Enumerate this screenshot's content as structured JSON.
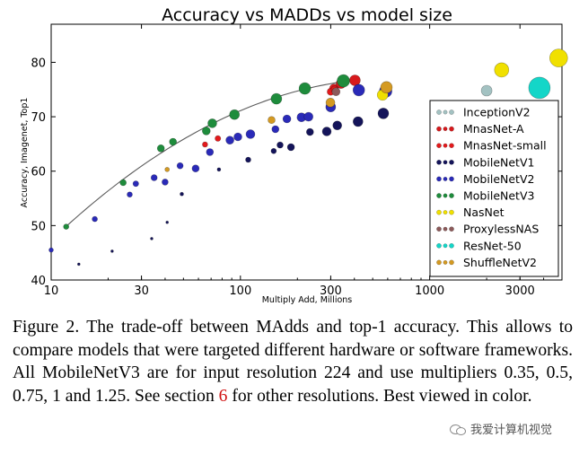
{
  "chart_data": {
    "type": "scatter",
    "title": "Accuracy vs MADDs vs model size",
    "xlabel": "Multiply Add, Millions",
    "ylabel": "Accuracy, Imagenet, Top1",
    "xscale": "log",
    "xlim": [
      10,
      5000
    ],
    "ylim": [
      40,
      87
    ],
    "xticks": [
      10,
      30,
      100,
      300,
      1000,
      3000
    ],
    "xtick_labels": [
      "10",
      "30",
      "100",
      "300",
      "1000",
      "3000"
    ],
    "yticks": [
      40,
      50,
      60,
      70,
      80
    ],
    "ytick_labels": [
      "40",
      "50",
      "60",
      "70",
      "80"
    ],
    "grid": false,
    "legend_position": "lower-right",
    "series": [
      {
        "name": "InceptionV2",
        "color": "#a3c2c2",
        "points": [
          {
            "x": 2000,
            "y": 74.8,
            "r": 6
          }
        ]
      },
      {
        "name": "MnasNet-A",
        "color": "#d7191c",
        "points": [
          {
            "x": 312,
            "y": 75.2,
            "r": 5
          },
          {
            "x": 340,
            "y": 76.1,
            "r": 5.5
          },
          {
            "x": 403,
            "y": 76.7,
            "r": 6
          }
        ]
      },
      {
        "name": "MnasNet-small",
        "color": "#e31a1c",
        "points": [
          {
            "x": 65,
            "y": 64.9,
            "r": 3
          },
          {
            "x": 76,
            "y": 66.0,
            "r": 3.2
          },
          {
            "x": 300,
            "y": 74.6,
            "r": 4
          },
          {
            "x": 315,
            "y": 75.0,
            "r": 4
          }
        ]
      },
      {
        "name": "MobileNetV1",
        "color": "#14145a",
        "points": [
          {
            "x": 14,
            "y": 42.9,
            "r": 1.5
          },
          {
            "x": 21,
            "y": 45.3,
            "r": 1.5
          },
          {
            "x": 34,
            "y": 47.6,
            "r": 1.5
          },
          {
            "x": 41,
            "y": 50.6,
            "r": 1.5
          },
          {
            "x": 49,
            "y": 55.8,
            "r": 2
          },
          {
            "x": 77,
            "y": 60.3,
            "r": 2
          },
          {
            "x": 110,
            "y": 62.1,
            "r": 3
          },
          {
            "x": 150,
            "y": 63.7,
            "r": 3
          },
          {
            "x": 162,
            "y": 64.8,
            "r": 3.5
          },
          {
            "x": 185,
            "y": 64.4,
            "r": 4
          },
          {
            "x": 233,
            "y": 67.2,
            "r": 4
          },
          {
            "x": 286,
            "y": 67.3,
            "r": 5
          },
          {
            "x": 325,
            "y": 68.4,
            "r": 5
          },
          {
            "x": 418,
            "y": 69.1,
            "r": 5.5
          },
          {
            "x": 569,
            "y": 70.6,
            "r": 6
          }
        ]
      },
      {
        "name": "MobileNetV2",
        "color": "#2a2ab8",
        "points": [
          {
            "x": 10,
            "y": 45.5,
            "r": 2.5
          },
          {
            "x": 17,
            "y": 51.2,
            "r": 3
          },
          {
            "x": 26,
            "y": 55.7,
            "r": 3
          },
          {
            "x": 28,
            "y": 57.7,
            "r": 3.2
          },
          {
            "x": 35,
            "y": 58.8,
            "r": 3.5
          },
          {
            "x": 40,
            "y": 58.0,
            "r": 3.5
          },
          {
            "x": 48,
            "y": 61.0,
            "r": 3.5
          },
          {
            "x": 58,
            "y": 60.5,
            "r": 4
          },
          {
            "x": 69,
            "y": 63.5,
            "r": 4
          },
          {
            "x": 88,
            "y": 65.7,
            "r": 4.5
          },
          {
            "x": 97,
            "y": 66.3,
            "r": 4.5
          },
          {
            "x": 113,
            "y": 66.8,
            "r": 5
          },
          {
            "x": 153,
            "y": 67.7,
            "r": 4
          },
          {
            "x": 176,
            "y": 69.6,
            "r": 4.5
          },
          {
            "x": 210,
            "y": 69.9,
            "r": 5
          },
          {
            "x": 229,
            "y": 70.0,
            "r": 5
          },
          {
            "x": 300,
            "y": 71.8,
            "r": 5.5
          },
          {
            "x": 422,
            "y": 74.9,
            "r": 6.5
          },
          {
            "x": 585,
            "y": 74.7,
            "r": 7
          }
        ]
      },
      {
        "name": "MobileNetV3",
        "color": "#1e8c3c",
        "points": [
          {
            "x": 12,
            "y": 49.8,
            "r": 3
          },
          {
            "x": 24,
            "y": 57.9,
            "r": 3.5
          },
          {
            "x": 38,
            "y": 64.2,
            "r": 4
          },
          {
            "x": 44,
            "y": 65.4,
            "r": 4
          },
          {
            "x": 66,
            "y": 67.4,
            "r": 4.5
          },
          {
            "x": 71,
            "y": 68.8,
            "r": 5
          },
          {
            "x": 93,
            "y": 70.4,
            "r": 5.5
          },
          {
            "x": 155,
            "y": 73.3,
            "r": 6
          },
          {
            "x": 219,
            "y": 75.2,
            "r": 6.5
          },
          {
            "x": 350,
            "y": 76.6,
            "r": 7
          }
        ]
      },
      {
        "name": "NasNet",
        "color": "#f0e000",
        "points": [
          {
            "x": 564,
            "y": 74.0,
            "r": 6
          },
          {
            "x": 2400,
            "y": 78.6,
            "r": 8
          },
          {
            "x": 4800,
            "y": 80.8,
            "r": 10
          }
        ]
      },
      {
        "name": "ProxylessNAS",
        "color": "#8c5a5a",
        "points": [
          {
            "x": 320,
            "y": 74.6,
            "r": 4.5
          }
        ]
      },
      {
        "name": "ResNet-50",
        "color": "#14d6c8",
        "points": [
          {
            "x": 3800,
            "y": 75.3,
            "r": 12
          }
        ]
      },
      {
        "name": "ShuffleNetV2",
        "color": "#d49a22",
        "points": [
          {
            "x": 41,
            "y": 60.3,
            "r": 2.5
          },
          {
            "x": 146,
            "y": 69.4,
            "r": 4
          },
          {
            "x": 299,
            "y": 72.6,
            "r": 5
          },
          {
            "x": 591,
            "y": 75.4,
            "r": 6.5
          }
        ]
      }
    ],
    "pareto_line": {
      "series": "MobileNetV3",
      "color": "#5a5a5a"
    }
  },
  "caption": {
    "part1": "Figure 2. The trade-off between MAdds and top-1 accuracy. This allows to compare models that were targeted different hardware or software frameworks.  All MobileNetV3 are for input resolution 224 and use multipliers 0.35, 0.5, 0.75, 1 and 1.25. See section ",
    "ref": "6",
    "part2": " for other resolutions. Best viewed in color."
  },
  "watermark": {
    "text": "我爱计算机视觉"
  }
}
